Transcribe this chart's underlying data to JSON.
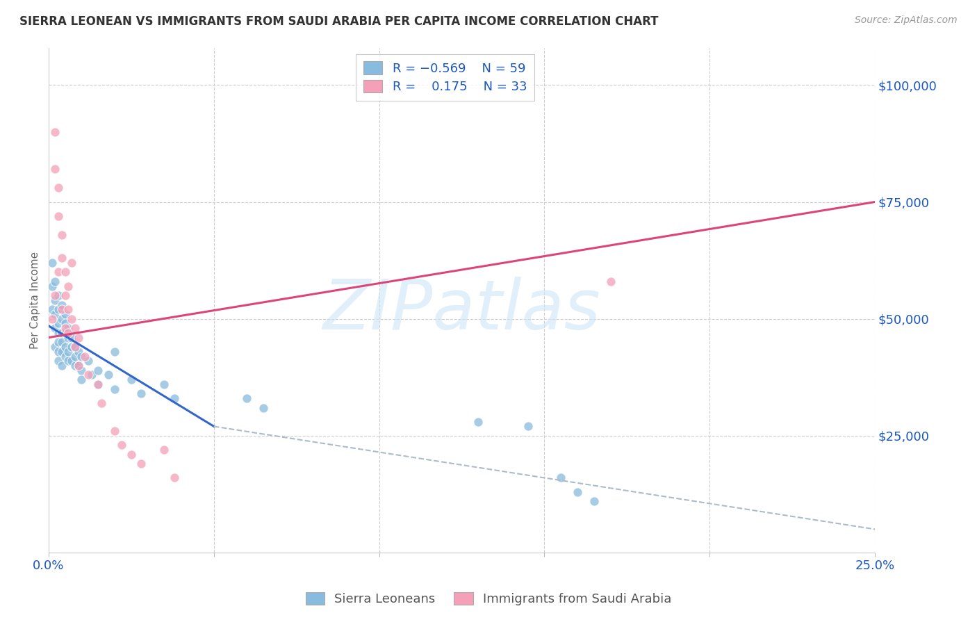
{
  "title": "SIERRA LEONEAN VS IMMIGRANTS FROM SAUDI ARABIA PER CAPITA INCOME CORRELATION CHART",
  "source": "Source: ZipAtlas.com",
  "ylabel": "Per Capita Income",
  "color_blue": "#88bbdd",
  "color_pink": "#f4a0b8",
  "color_line_blue": "#3366cc",
  "color_line_pink": "#dd4477",
  "color_text_blue": "#1a56c4",
  "xlim": [
    0.0,
    0.25
  ],
  "ylim": [
    0,
    108000
  ],
  "yticks": [
    0,
    25000,
    50000,
    75000,
    100000
  ],
  "ytick_labels": [
    "",
    "$25,000",
    "$50,000",
    "$75,000",
    "$100,000"
  ],
  "xticks": [
    0.0,
    0.05,
    0.1,
    0.15,
    0.2,
    0.25
  ],
  "xtick_labels": [
    "0.0%",
    "",
    "",
    "",
    "",
    "25.0%"
  ],
  "blue_line_x0": 0.0,
  "blue_line_y0": 48500,
  "blue_line_x1": 0.05,
  "blue_line_y1": 27000,
  "dash_line_x0": 0.05,
  "dash_line_y0": 27000,
  "dash_line_x1": 0.25,
  "dash_line_y1": 5000,
  "pink_line_x0": 0.0,
  "pink_line_y0": 46000,
  "pink_line_x1": 0.25,
  "pink_line_y1": 75000,
  "blue_scatter_x": [
    0.001,
    0.001,
    0.001,
    0.002,
    0.002,
    0.002,
    0.002,
    0.002,
    0.003,
    0.003,
    0.003,
    0.003,
    0.003,
    0.003,
    0.003,
    0.004,
    0.004,
    0.004,
    0.004,
    0.004,
    0.004,
    0.005,
    0.005,
    0.005,
    0.005,
    0.005,
    0.006,
    0.006,
    0.006,
    0.006,
    0.007,
    0.007,
    0.007,
    0.008,
    0.008,
    0.008,
    0.009,
    0.009,
    0.01,
    0.01,
    0.01,
    0.012,
    0.013,
    0.015,
    0.015,
    0.018,
    0.02,
    0.02,
    0.025,
    0.028,
    0.035,
    0.038,
    0.06,
    0.065,
    0.13,
    0.145,
    0.155,
    0.16,
    0.165
  ],
  "blue_scatter_y": [
    62000,
    57000,
    52000,
    58000,
    54000,
    51000,
    48000,
    44000,
    55000,
    52000,
    49000,
    47000,
    45000,
    43000,
    41000,
    53000,
    50000,
    47000,
    45000,
    43000,
    40000,
    51000,
    49000,
    47000,
    44000,
    42000,
    48000,
    46000,
    43000,
    41000,
    46000,
    44000,
    41000,
    44000,
    42000,
    40000,
    43000,
    40000,
    42000,
    39000,
    37000,
    41000,
    38000,
    39000,
    36000,
    38000,
    43000,
    35000,
    37000,
    34000,
    36000,
    33000,
    33000,
    31000,
    28000,
    27000,
    16000,
    13000,
    11000
  ],
  "pink_scatter_x": [
    0.001,
    0.002,
    0.002,
    0.002,
    0.003,
    0.003,
    0.003,
    0.004,
    0.004,
    0.004,
    0.005,
    0.005,
    0.005,
    0.006,
    0.006,
    0.006,
    0.007,
    0.007,
    0.008,
    0.008,
    0.009,
    0.009,
    0.011,
    0.012,
    0.015,
    0.016,
    0.02,
    0.022,
    0.025,
    0.028,
    0.035,
    0.038,
    0.17
  ],
  "pink_scatter_y": [
    50000,
    90000,
    82000,
    55000,
    78000,
    72000,
    60000,
    68000,
    63000,
    52000,
    60000,
    55000,
    48000,
    57000,
    52000,
    47000,
    62000,
    50000,
    48000,
    44000,
    46000,
    40000,
    42000,
    38000,
    36000,
    32000,
    26000,
    23000,
    21000,
    19000,
    22000,
    16000,
    58000
  ]
}
